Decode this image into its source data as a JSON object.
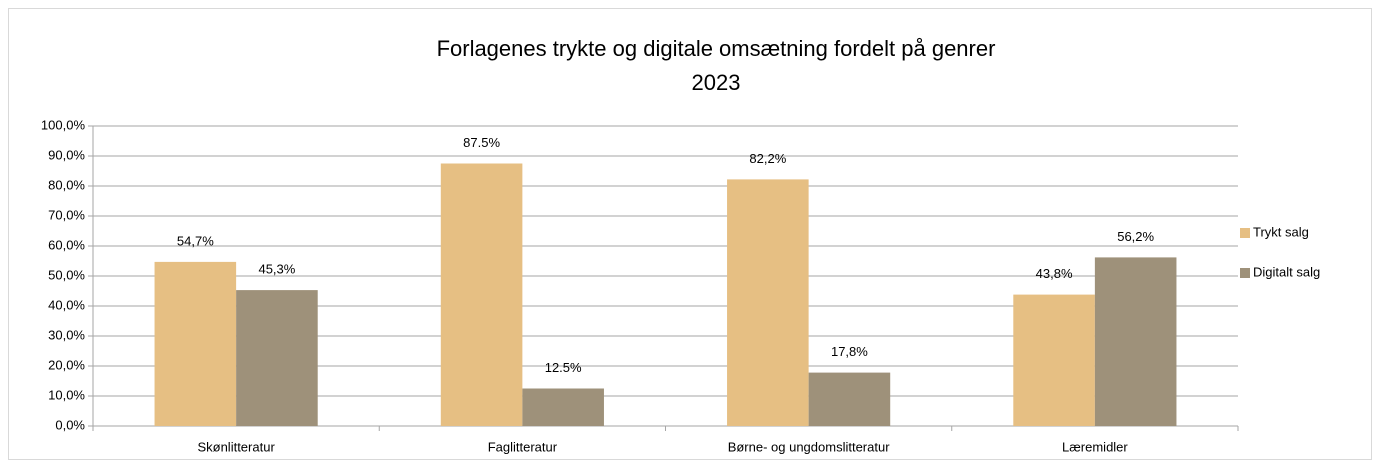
{
  "chart_data": {
    "type": "bar",
    "title": "Forlagenes trykte og digitale omsætning fordelt på genrer",
    "subtitle": "2023",
    "categories": [
      "Skønlitteratur",
      "Faglitteratur",
      "Børne- og ungdomslitteratur",
      "Læremidler"
    ],
    "series": [
      {
        "name": "Trykt salg",
        "color": "#e6bf83",
        "values": [
          54.7,
          87.5,
          82.2,
          43.8
        ],
        "value_labels": [
          "54,7%",
          "87.5%",
          "82,2%",
          "43,8%"
        ]
      },
      {
        "name": "Digitalt salg",
        "color": "#9e917a",
        "values": [
          45.3,
          12.5,
          17.8,
          56.2
        ],
        "value_labels": [
          "45,3%",
          "12.5%",
          "17,8%",
          "56,2%"
        ]
      }
    ],
    "ylim": [
      0,
      100
    ],
    "yticks": [
      {
        "value": 0,
        "label": "0,0%"
      },
      {
        "value": 10,
        "label": "10,0%"
      },
      {
        "value": 20,
        "label": "20,0%"
      },
      {
        "value": 30,
        "label": "30,0%"
      },
      {
        "value": 40,
        "label": "40,0%"
      },
      {
        "value": 50,
        "label": "50,0%"
      },
      {
        "value": 60,
        "label": "60,0%"
      },
      {
        "value": 70,
        "label": "70,0%"
      },
      {
        "value": 80,
        "label": "80,0%"
      },
      {
        "value": 90,
        "label": "90,0%"
      },
      {
        "value": 100,
        "label": "100,0%"
      }
    ],
    "grid": true,
    "legend": "right"
  }
}
